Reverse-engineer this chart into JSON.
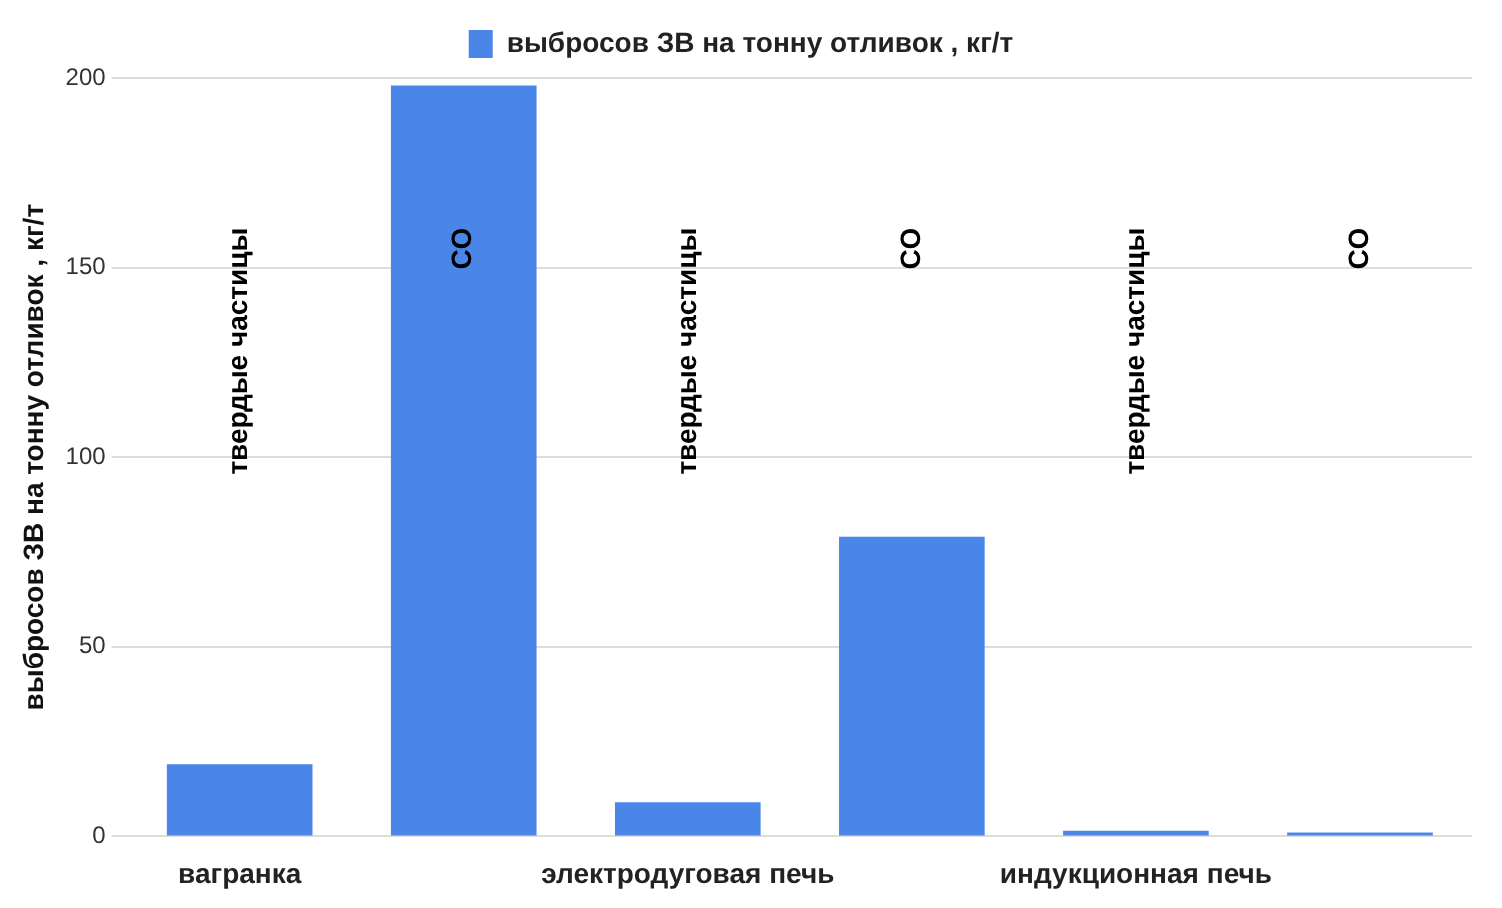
{
  "chart_data": {
    "type": "bar",
    "ylabel": "выбросов ЗВ на тонну отливок , кг/т",
    "categories": [
      "вагранка",
      null,
      "электродуговая печь",
      null,
      "индукционная печь",
      null
    ],
    "series": [
      {
        "name": "выбросов ЗВ на тонну отливок , кг/т",
        "color": "#4a86e8",
        "values": [
          19,
          198,
          9,
          79,
          1.5,
          1
        ]
      }
    ],
    "annotations": [
      "твердые частицы",
      "CO",
      "твердые частицы",
      "CO",
      "твердые частицы",
      "CO"
    ],
    "ylim": [
      0,
      200
    ],
    "yticks": [
      0,
      50,
      100,
      150,
      200
    ],
    "grid": "y",
    "legend": "top"
  }
}
